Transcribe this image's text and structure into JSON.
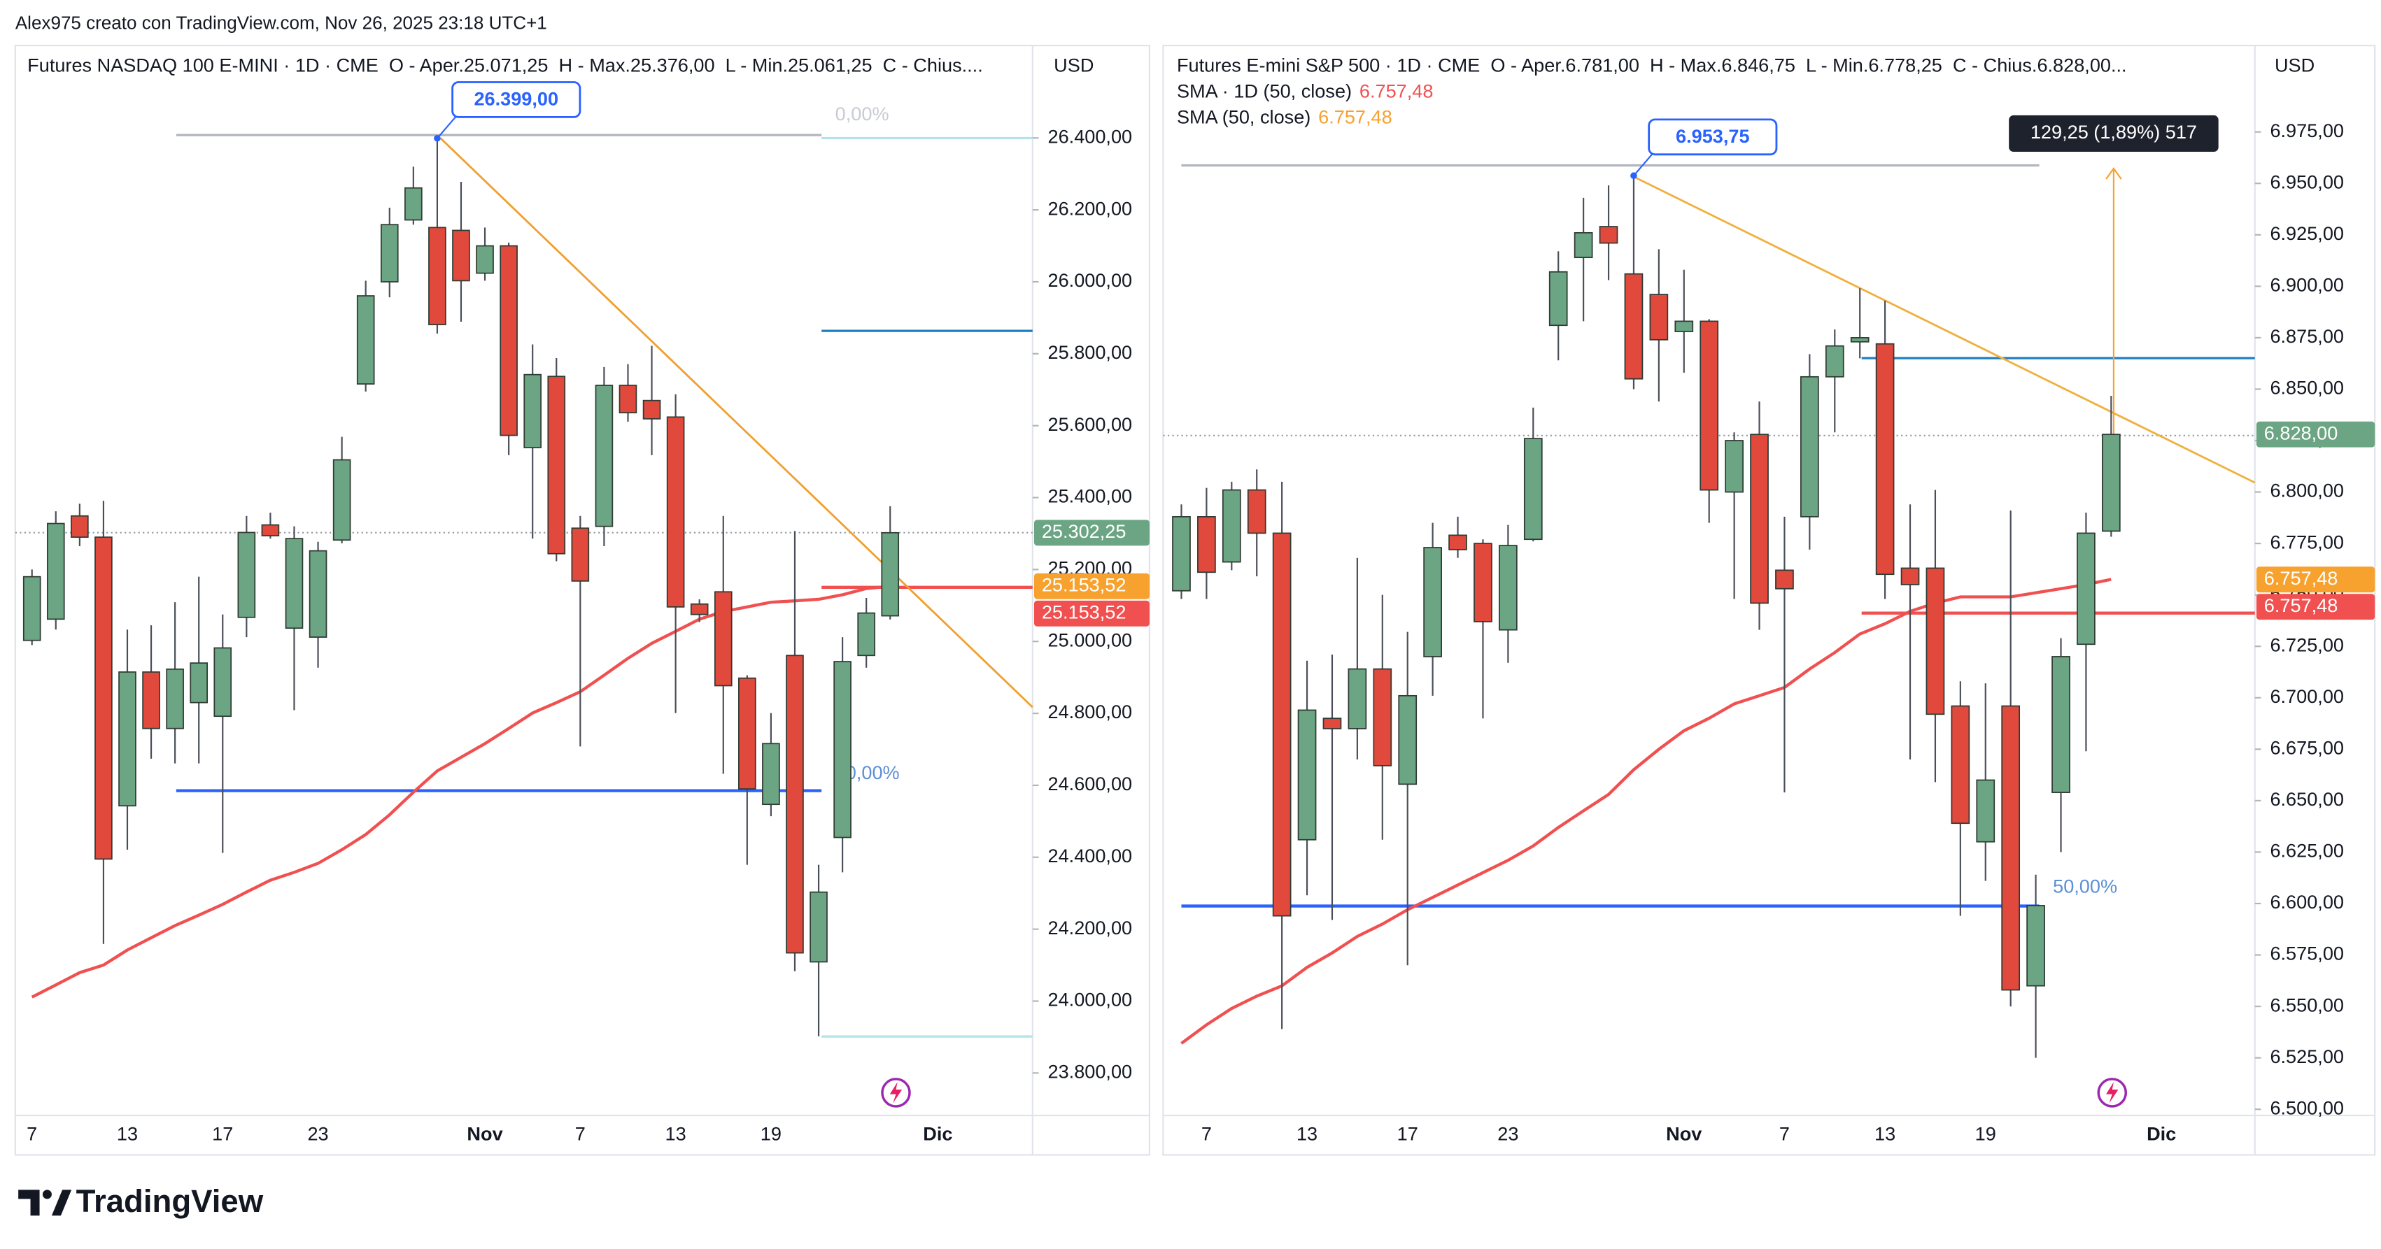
{
  "watermark": "Alex975 creato con TradingView.com, Nov 26, 2025 23:18 UTC+1",
  "brand": "TradingView",
  "chart_data": [
    {
      "type": "candlestick",
      "legend": "Futures NASDAQ 100 E-MINI · 1D · CME  O - Aper.25.071,25  H - Max.25.376,00  L - Min.25.061,25  C - Chius....",
      "currency": "USD",
      "up_color": "#6ba583",
      "down_color": "#e0493c",
      "grid": false,
      "categories": [
        "7",
        null,
        null,
        null,
        "13",
        null,
        null,
        null,
        "17",
        null,
        null,
        null,
        "23",
        null,
        null,
        null,
        null,
        null,
        null,
        "Nov",
        null,
        null,
        null,
        "7",
        null,
        null,
        null,
        "13",
        null,
        null,
        null,
        "19",
        null,
        null,
        null,
        null,
        null,
        null,
        "Dic"
      ],
      "open": [
        25003,
        25062,
        25349,
        25290,
        24543,
        24915,
        24758,
        24830,
        24792,
        25067,
        25324,
        25037,
        25012,
        25282,
        25716,
        26000,
        26172,
        26151,
        26143,
        26024,
        26100,
        25539,
        25737,
        25315,
        25320,
        25712,
        25670,
        25624,
        25104,
        25138,
        24898,
        24547,
        24961,
        24109,
        24455,
        24961,
        25071.25,
        null,
        null
      ],
      "high": [
        25200,
        25362,
        25383,
        25391,
        25033,
        25045,
        25109,
        25180,
        25075,
        25349,
        25358,
        25320,
        25277,
        25569,
        26003,
        26206,
        26320,
        26399,
        26278,
        26151,
        26109,
        25826,
        25788,
        25349,
        25763,
        25771,
        25822,
        25687,
        25117,
        25349,
        24906,
        24801,
        25307,
        24379,
        25012,
        25121,
        25376,
        null,
        null
      ],
      "low": [
        24990,
        25033,
        25265,
        24159,
        24421,
        24674,
        24661,
        24661,
        24412,
        25012,
        25286,
        24809,
        24927,
        25273,
        25695,
        25957,
        26159,
        25856,
        25889,
        26003,
        25518,
        25286,
        25223,
        24708,
        25265,
        25611,
        25518,
        24801,
        25054,
        24632,
        24379,
        24514,
        24083,
        23902,
        24358,
        24927,
        25061.25,
        null,
        null
      ],
      "close": [
        25180,
        25328,
        25290,
        24395,
        24915,
        24758,
        24923,
        24940,
        24982,
        25303,
        25294,
        25286,
        25252,
        25505,
        25961,
        26159,
        26261,
        25881,
        26003,
        26100,
        25573,
        25742,
        25244,
        25168,
        25712,
        25636,
        25619,
        25096,
        25075,
        24877,
        24590,
        24716,
        24134,
        24303,
        24944,
        25079,
        25302.25,
        null,
        null
      ],
      "sma": {
        "color": "#f05050",
        "values": [
          24011,
          24045,
          24079,
          24100,
          24142,
          24176,
          24210,
          24239,
          24269,
          24303,
          24336,
          24358,
          24383,
          24421,
          24463,
          24518,
          24581,
          24640,
          24678,
          24716,
          24758,
          24801,
          24830,
          24860,
          24906,
          24953,
          24995,
          25028,
          25062,
          25083,
          25096,
          25109,
          25113,
          25117,
          25130,
          25147,
          25153.52,
          null,
          null
        ]
      },
      "ylim": [
        23682,
        26657
      ],
      "yticks": [
        {
          "value": 23800,
          "label": "23.800,00"
        },
        {
          "value": 24000,
          "label": "24.000,00"
        },
        {
          "value": 24200,
          "label": "24.200,00"
        },
        {
          "value": 24400,
          "label": "24.400,00"
        },
        {
          "value": 24600,
          "label": "24.600,00"
        },
        {
          "value": 24800,
          "label": "24.800,00"
        },
        {
          "value": 25000,
          "label": "25.000,00"
        },
        {
          "value": 25200,
          "label": "25.200,00"
        },
        {
          "value": 25400,
          "label": "25.400,00"
        },
        {
          "value": 25600,
          "label": "25.600,00"
        },
        {
          "value": 25800,
          "label": "25.800,00"
        },
        {
          "value": 26000,
          "label": "26.000,00"
        },
        {
          "value": 26200,
          "label": "26.200,00"
        },
        {
          "value": 26400,
          "label": "26.400,00"
        }
      ],
      "price_labels": [
        {
          "value": 25302.25,
          "label": "25.302,25",
          "color": "#6ba583"
        },
        {
          "value": 25153.52,
          "label": "25.153,52",
          "color": "#f7a12e"
        },
        {
          "value": 25153.52,
          "label": "25.153,52",
          "color": "#f05050"
        }
      ],
      "callout": {
        "value": 26399,
        "label": "26.399,00"
      },
      "fib_labels": [
        "0,00%",
        "50,00%"
      ]
    },
    {
      "type": "candlestick",
      "legend": "Futures E-mini S&P 500 · 1D · CME  O - Aper.6.781,00  H - Max.6.846,75  L - Min.6.778,25  C - Chius.6.828,00...",
      "sma_legend": [
        {
          "name": "SMA · 1D (50, close)",
          "value": "6.757,48",
          "color": "#f05050"
        },
        {
          "name": "SMA (50, close)",
          "value": "6.757,48",
          "color": "#f7a12e"
        }
      ],
      "currency": "USD",
      "up_color": "#6ba583",
      "down_color": "#e0493c",
      "grid": false,
      "categories": [
        null,
        "7",
        null,
        null,
        null,
        "13",
        null,
        null,
        null,
        "17",
        null,
        null,
        null,
        "23",
        null,
        null,
        null,
        null,
        null,
        null,
        "Nov",
        null,
        null,
        null,
        "7",
        null,
        null,
        null,
        "13",
        null,
        null,
        null,
        "19",
        null,
        null,
        null,
        null,
        null,
        null,
        "Dic"
      ],
      "open": [
        6752,
        6788,
        6766,
        6801,
        6780,
        6631,
        6690,
        6685,
        6714,
        6658,
        6720,
        6779,
        6775,
        6733,
        6777,
        6881,
        6914,
        6929,
        6906,
        6896,
        6878,
        6883,
        6800,
        6828,
        6762,
        6788,
        6856,
        6873,
        6872,
        6763,
        6763,
        6696,
        6630,
        6696,
        6560,
        6654,
        6726,
        6781,
        null,
        null
      ],
      "high": [
        6794,
        6802,
        6805,
        6811,
        6805,
        6718,
        6721,
        6768,
        6750,
        6732,
        6785,
        6788,
        6777,
        6784,
        6841,
        6917,
        6943,
        6949,
        6953.75,
        6918,
        6908,
        6884,
        6829,
        6844,
        6788,
        6867,
        6879,
        6899,
        6893,
        6794,
        6801,
        6708,
        6707,
        6791,
        6614,
        6729,
        6790,
        6846.75,
        null,
        null
      ],
      "low": [
        6748,
        6748,
        6762,
        6759,
        6539,
        6604,
        6592,
        6670,
        6631,
        6570,
        6701,
        6768,
        6690,
        6717,
        6776,
        6864,
        6883,
        6903,
        6850,
        6844,
        6858,
        6785,
        6748,
        6733,
        6654,
        6772,
        6829,
        6865,
        6748,
        6670,
        6659,
        6594,
        6611,
        6550,
        6525,
        6625,
        6674,
        6778.25,
        null,
        null
      ],
      "close": [
        6788,
        6761,
        6801,
        6780,
        6594,
        6694,
        6685,
        6714,
        6667,
        6701,
        6773,
        6772,
        6737,
        6774,
        6826,
        6907,
        6926,
        6921,
        6855,
        6874,
        6883,
        6801,
        6825,
        6746,
        6753,
        6856,
        6871,
        6875,
        6760,
        6755,
        6692,
        6639,
        6660,
        6558,
        6599,
        6720,
        6780,
        6828,
        null,
        null
      ],
      "sma": {
        "color": "#f05050",
        "values": [
          6532,
          6541,
          6549,
          6555,
          6560,
          6569,
          6576,
          6584,
          6590,
          6597,
          6603,
          6609,
          6615,
          6621,
          6628,
          6637,
          6645,
          6653,
          6665,
          6675,
          6684,
          6690,
          6697,
          6701,
          6705,
          6714,
          6722,
          6731,
          6736,
          6742,
          6746,
          6749,
          6749,
          6749,
          6751,
          6753,
          6755,
          6757.48,
          null,
          null
        ]
      },
      "ylim": [
        6497,
        7017
      ],
      "yticks": [
        {
          "value": 6500,
          "label": "6.500,00"
        },
        {
          "value": 6525,
          "label": "6.525,00"
        },
        {
          "value": 6550,
          "label": "6.550,00"
        },
        {
          "value": 6575,
          "label": "6.575,00"
        },
        {
          "value": 6600,
          "label": "6.600,00"
        },
        {
          "value": 6625,
          "label": "6.625,00"
        },
        {
          "value": 6650,
          "label": "6.650,00"
        },
        {
          "value": 6675,
          "label": "6.675,00"
        },
        {
          "value": 6700,
          "label": "6.700,00"
        },
        {
          "value": 6725,
          "label": "6.725,00"
        },
        {
          "value": 6750,
          "label": "6.750,00"
        },
        {
          "value": 6775,
          "label": "6.775,00"
        },
        {
          "value": 6800,
          "label": "6.800,00"
        },
        {
          "value": 6825,
          "label": "6.825,00"
        },
        {
          "value": 6850,
          "label": "6.850,00"
        },
        {
          "value": 6875,
          "label": "6.875,00"
        },
        {
          "value": 6900,
          "label": "6.900,00"
        },
        {
          "value": 6925,
          "label": "6.925,00"
        },
        {
          "value": 6950,
          "label": "6.950,00"
        },
        {
          "value": 6975,
          "label": "6.975,00"
        }
      ],
      "price_labels": [
        {
          "value": 6828,
          "label": "6.828,00",
          "color": "#6ba583"
        },
        {
          "value": 6757.48,
          "label": "6.757,48",
          "color": "#f7a12e"
        },
        {
          "value": 6757.48,
          "label": "6.757,48",
          "color": "#f05050"
        }
      ],
      "callout": {
        "value": 6953.75,
        "label": "6.953,75"
      },
      "measure": "129,25 (1,89%) 517",
      "fib_labels": [
        "50,00%"
      ]
    }
  ]
}
